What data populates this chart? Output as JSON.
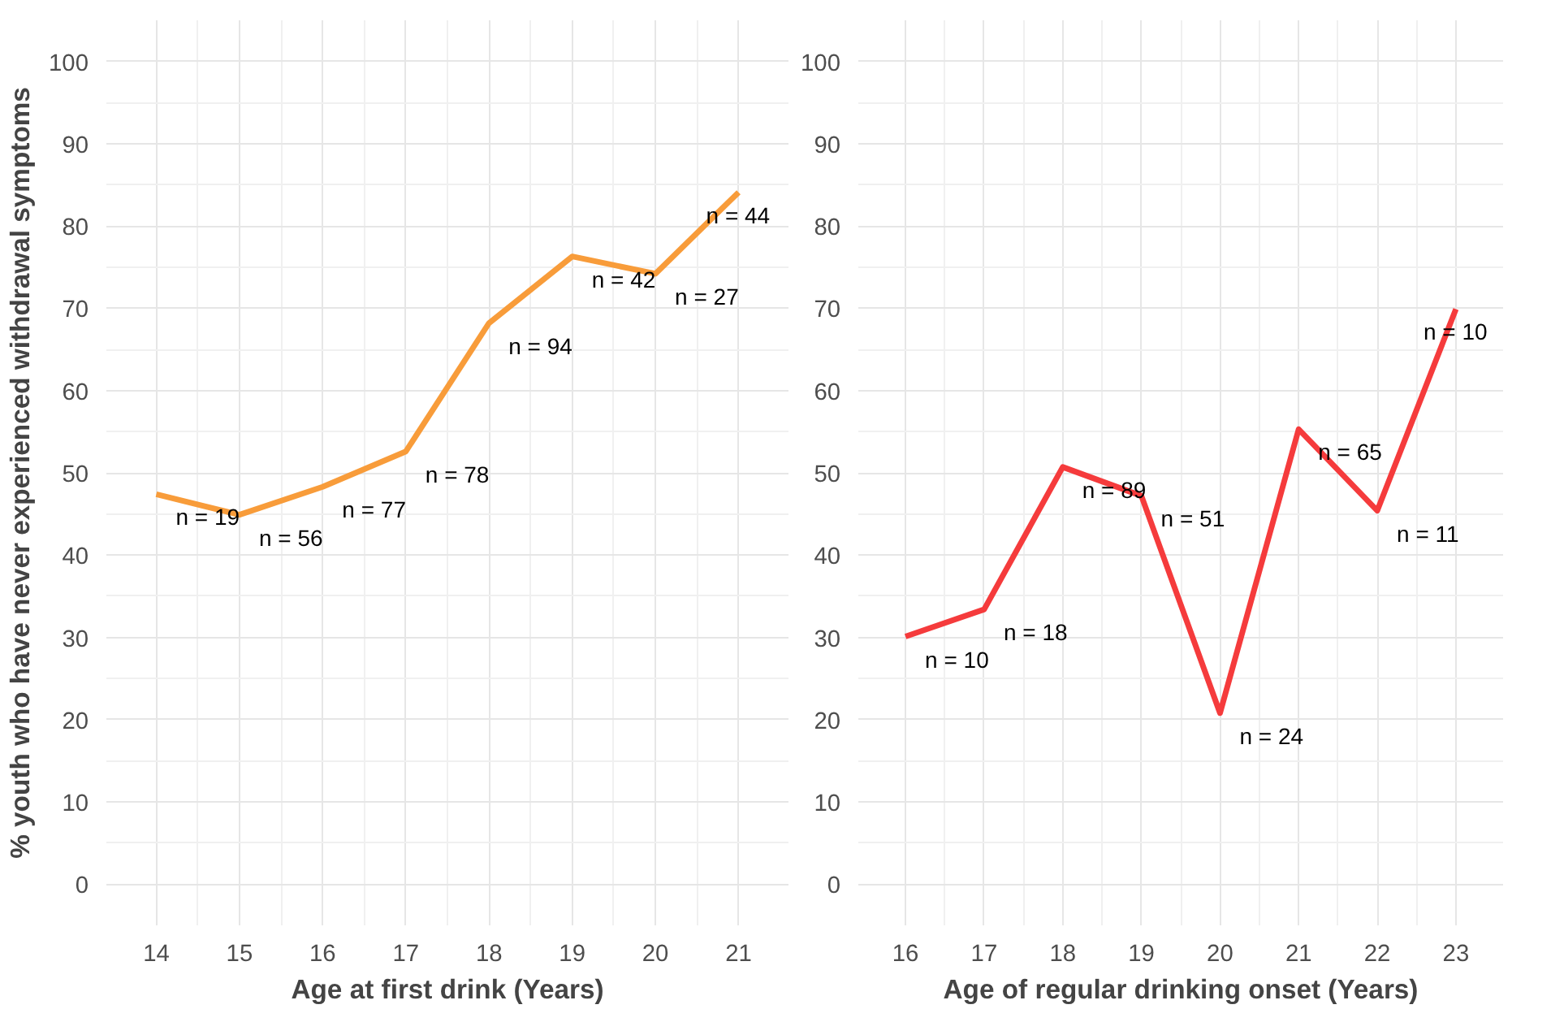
{
  "chart_data": [
    {
      "type": "line",
      "xlabel": "Age at first drink (Years)",
      "ylabel": "% youth who have never experienced withdrawal symptoms",
      "x": [
        14,
        15,
        16,
        17,
        18,
        19,
        20,
        21
      ],
      "series": [
        {
          "color": "#f89c3a",
          "values": [
            47.4,
            44.9,
            48.3,
            52.6,
            68.2,
            76.3,
            74.2,
            84.1
          ]
        }
      ],
      "xlim": [
        13.4,
        21.6
      ],
      "xticks": [
        14,
        15,
        16,
        17,
        18,
        19,
        20,
        21
      ],
      "ylim": [
        -5,
        105
      ],
      "yticks": [
        0,
        10,
        20,
        30,
        40,
        50,
        60,
        70,
        80,
        90,
        100
      ],
      "grid": true,
      "annotations": [
        {
          "text": "n = 19",
          "x": 14,
          "y": 47.4
        },
        {
          "text": "n = 56",
          "x": 15,
          "y": 44.9
        },
        {
          "text": "n = 77",
          "x": 16,
          "y": 48.3
        },
        {
          "text": "n = 78",
          "x": 17,
          "y": 52.6
        },
        {
          "text": "n = 94",
          "x": 18,
          "y": 68.2
        },
        {
          "text": "n = 42",
          "x": 19,
          "y": 76.3
        },
        {
          "text": "n = 27",
          "x": 20,
          "y": 74.2
        },
        {
          "text": "n = 44",
          "x": 21,
          "y": 84.1
        }
      ]
    },
    {
      "type": "line",
      "xlabel": "Age of regular drinking onset (Years)",
      "x": [
        16,
        17,
        18,
        19,
        20,
        21,
        22,
        23
      ],
      "series": [
        {
          "color": "#f53b3c",
          "values": [
            30.1,
            33.4,
            50.7,
            47.2,
            20.8,
            55.3,
            45.4,
            69.9
          ]
        }
      ],
      "xlim": [
        15.4,
        23.6
      ],
      "xticks": [
        16,
        17,
        18,
        19,
        20,
        21,
        22,
        23
      ],
      "ylim": [
        -5,
        105
      ],
      "yticks": [
        0,
        10,
        20,
        30,
        40,
        50,
        60,
        70,
        80,
        90,
        100
      ],
      "grid": true,
      "annotations": [
        {
          "text": "n = 10",
          "x": 16,
          "y": 30.1
        },
        {
          "text": "n = 18",
          "x": 17,
          "y": 33.4
        },
        {
          "text": "n = 89",
          "x": 18,
          "y": 50.7
        },
        {
          "text": "n = 51",
          "x": 19,
          "y": 47.2
        },
        {
          "text": "n = 24",
          "x": 20,
          "y": 20.8
        },
        {
          "text": "n = 65",
          "x": 21,
          "y": 55.3
        },
        {
          "text": "n = 11",
          "x": 22,
          "y": 45.4
        },
        {
          "text": "n = 10",
          "x": 23,
          "y": 69.9
        }
      ]
    }
  ]
}
